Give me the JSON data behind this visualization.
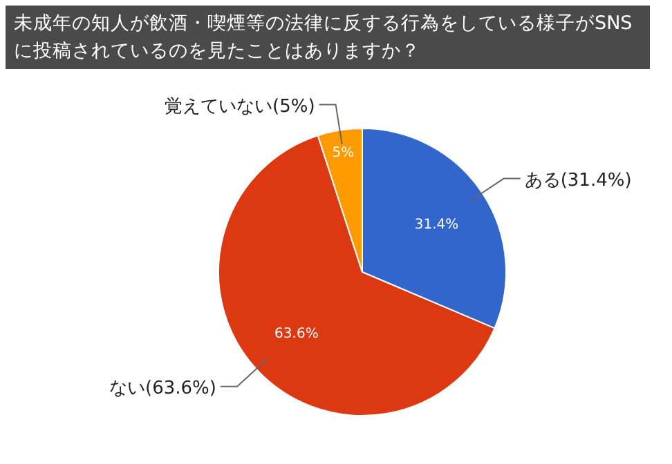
{
  "chart_data": {
    "type": "pie",
    "title": "未成年の知人が飲酒・喫煙等の法律に反する行為をしている様子がSNSに投稿されているのを見たことはありますか？",
    "categories": [
      "ある(31.4%)",
      "ない(63.6%)",
      "覚えていない(5%)"
    ],
    "values": [
      31.4,
      63.6,
      5
    ],
    "colors": [
      "#3366cc",
      "#dc3912",
      "#ff9900"
    ],
    "value_labels": [
      "31.4%",
      "63.6%",
      "5%"
    ]
  }
}
